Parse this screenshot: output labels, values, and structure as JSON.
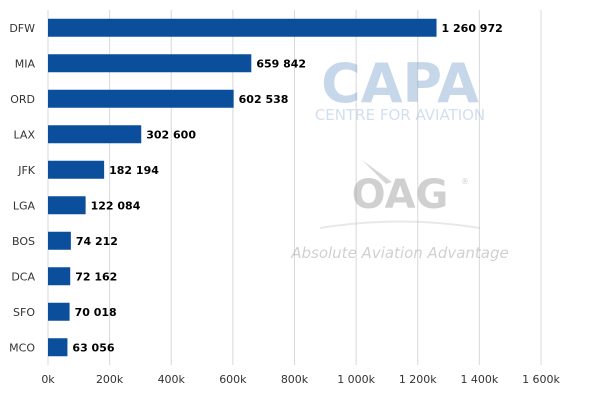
{
  "chart_data": {
    "type": "bar",
    "orientation": "horizontal",
    "categories": [
      "DFW",
      "MIA",
      "ORD",
      "LAX",
      "JFK",
      "LGA",
      "BOS",
      "DCA",
      "SFO",
      "MCO"
    ],
    "values": [
      1260972,
      659842,
      602538,
      302600,
      182194,
      122084,
      74212,
      72162,
      70018,
      63056
    ],
    "value_labels": [
      "1 260 972",
      "659 842",
      "602 538",
      "302 600",
      "182 194",
      "122 084",
      "74 212",
      "72 162",
      "70 018",
      "63 056"
    ],
    "xticks": [
      0,
      200000,
      400000,
      600000,
      800000,
      1000000,
      1200000,
      1400000,
      1600000
    ],
    "xtick_labels": [
      "0k",
      "200k",
      "400k",
      "600k",
      "800k",
      "1 000k",
      "1 200k",
      "1 400k",
      "1 600k"
    ],
    "xlim": [
      0,
      1600000
    ],
    "grid": true,
    "bar_color": "#0b4f9c",
    "title": "",
    "xlabel": "",
    "ylabel": ""
  },
  "watermarks": {
    "capa_logo": "CAPA",
    "capa_subtitle": "CENTRE FOR AVIATION",
    "oag_logo": "OAG",
    "oag_tagline": "Absolute Aviation Advantage"
  }
}
